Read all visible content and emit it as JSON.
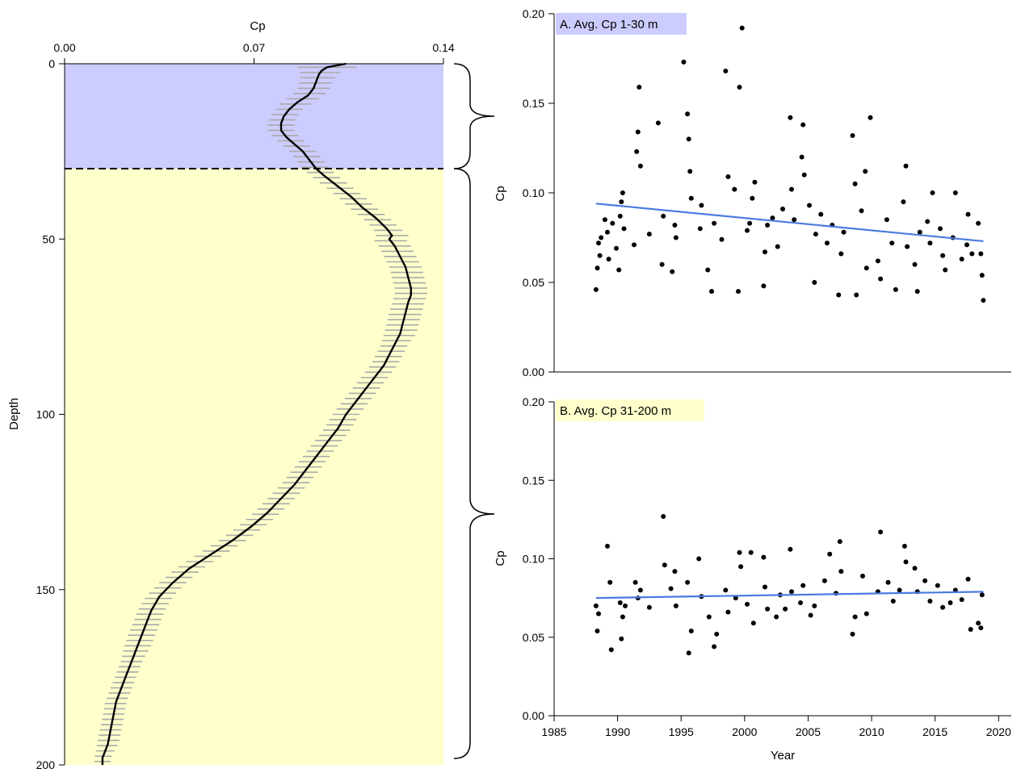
{
  "colors": {
    "surface_band": "#ccccff",
    "deep_band": "#ffffcc",
    "profile_line": "#000000",
    "error_bars": "#aaaaaa",
    "trend_line": "#4a7be0",
    "points": "#000000"
  },
  "chart_data": [
    {
      "type": "line",
      "xlabel": "Cp",
      "ylabel": "Depth",
      "xlim": [
        0.0,
        0.14
      ],
      "ylim": [
        200,
        0
      ],
      "x_ticks": [
        "0.00",
        "0.07",
        "0.14"
      ],
      "y_ticks": [
        "0",
        "50",
        "100",
        "150",
        "200"
      ],
      "x_axis_position": "top",
      "y_reversed": true,
      "shaded_layers": [
        {
          "depth_range": [
            0,
            30
          ],
          "color": "#ccccff"
        },
        {
          "depth_range": [
            30,
            200
          ],
          "color": "#ffffcc"
        }
      ],
      "boundary_depth": 30,
      "series": [
        {
          "depth": [
            0,
            1,
            2,
            3,
            5,
            7,
            9,
            11,
            13,
            15,
            17,
            19,
            21,
            23,
            25,
            27,
            29,
            30,
            32,
            35,
            38,
            41,
            44,
            47,
            49,
            50,
            52,
            55,
            58,
            61,
            64,
            66,
            68,
            71,
            74,
            77,
            80,
            83,
            86,
            89,
            92,
            96,
            100,
            104,
            108,
            112,
            116,
            120,
            124,
            128,
            132,
            136,
            140,
            144,
            148,
            152,
            156,
            158,
            162,
            166,
            170,
            174,
            178,
            182,
            186,
            190,
            194,
            198,
            200
          ],
          "cp": [
            0.104,
            0.097,
            0.095,
            0.094,
            0.093,
            0.092,
            0.09,
            0.086,
            0.083,
            0.081,
            0.08,
            0.08,
            0.082,
            0.085,
            0.088,
            0.09,
            0.092,
            0.093,
            0.096,
            0.101,
            0.106,
            0.11,
            0.115,
            0.119,
            0.121,
            0.12,
            0.122,
            0.124,
            0.126,
            0.127,
            0.128,
            0.128,
            0.127,
            0.126,
            0.125,
            0.124,
            0.122,
            0.12,
            0.118,
            0.115,
            0.112,
            0.108,
            0.104,
            0.101,
            0.097,
            0.093,
            0.089,
            0.085,
            0.08,
            0.075,
            0.069,
            0.062,
            0.054,
            0.046,
            0.04,
            0.035,
            0.032,
            0.031,
            0.029,
            0.027,
            0.025,
            0.023,
            0.021,
            0.019,
            0.018,
            0.017,
            0.016,
            0.014,
            0.014
          ],
          "err": [
            0.012,
            0.011,
            0.008,
            0.007,
            0.006,
            0.006,
            0.006,
            0.006,
            0.005,
            0.005,
            0.005,
            0.005,
            0.005,
            0.005,
            0.005,
            0.005,
            0.005,
            0.005,
            0.005,
            0.005,
            0.005,
            0.005,
            0.005,
            0.005,
            0.006,
            0.006,
            0.006,
            0.006,
            0.006,
            0.006,
            0.006,
            0.006,
            0.006,
            0.006,
            0.006,
            0.006,
            0.005,
            0.005,
            0.005,
            0.005,
            0.005,
            0.005,
            0.005,
            0.005,
            0.005,
            0.005,
            0.005,
            0.005,
            0.005,
            0.005,
            0.005,
            0.005,
            0.005,
            0.005,
            0.005,
            0.005,
            0.005,
            0.005,
            0.005,
            0.005,
            0.004,
            0.004,
            0.004,
            0.004,
            0.004,
            0.004,
            0.004,
            0.003,
            0.003
          ]
        }
      ]
    },
    {
      "type": "scatter",
      "title": "A. Avg. Cp 1-30 m",
      "xlabel": "",
      "ylabel": "Cp",
      "xlim": [
        1985,
        2021
      ],
      "ylim": [
        0.0,
        0.2
      ],
      "y_ticks": [
        "0.00",
        "0.05",
        "0.10",
        "0.15",
        "0.20"
      ],
      "x_tick_labels_shown": false,
      "trend": {
        "x": [
          1988.3,
          2018.8
        ],
        "y": [
          0.094,
          0.073
        ]
      },
      "x": [
        1988.3,
        1988.4,
        1988.5,
        1988.6,
        1988.7,
        1989.0,
        1989.2,
        1989.3,
        1989.6,
        1989.9,
        1990.1,
        1990.2,
        1990.3,
        1990.4,
        1990.5,
        1991.3,
        1991.5,
        1991.6,
        1991.7,
        1991.8,
        1992.5,
        1993.2,
        1993.5,
        1993.6,
        1994.3,
        1994.5,
        1994.6,
        1995.2,
        1995.5,
        1995.6,
        1995.7,
        1995.8,
        1996.5,
        1996.6,
        1997.1,
        1997.4,
        1997.6,
        1998.2,
        1998.5,
        1998.7,
        1999.2,
        1999.5,
        1999.6,
        1999.8,
        2000.2,
        2000.4,
        2000.6,
        2000.8,
        2001.5,
        2001.6,
        2001.8,
        2002.2,
        2002.6,
        2003.0,
        2003.6,
        2003.7,
        2003.9,
        2004.5,
        2004.6,
        2004.7,
        2005.1,
        2005.5,
        2005.6,
        2006.0,
        2006.5,
        2006.9,
        2007.4,
        2007.6,
        2007.8,
        2008.5,
        2008.7,
        2008.8,
        2009.2,
        2009.5,
        2009.6,
        2009.9,
        2010.5,
        2010.7,
        2011.2,
        2011.6,
        2011.9,
        2012.5,
        2012.7,
        2012.8,
        2013.4,
        2013.6,
        2013.8,
        2014.4,
        2014.6,
        2014.8,
        2015.4,
        2015.6,
        2015.8,
        2016.4,
        2016.6,
        2017.1,
        2017.5,
        2017.6,
        2017.9,
        2018.4,
        2018.6,
        2018.7,
        2018.8
      ],
      "y": [
        0.046,
        0.058,
        0.072,
        0.065,
        0.075,
        0.085,
        0.078,
        0.063,
        0.083,
        0.069,
        0.057,
        0.087,
        0.095,
        0.1,
        0.08,
        0.071,
        0.123,
        0.134,
        0.159,
        0.115,
        0.077,
        0.139,
        0.06,
        0.087,
        0.056,
        0.082,
        0.075,
        0.173,
        0.144,
        0.13,
        0.112,
        0.097,
        0.08,
        0.093,
        0.057,
        0.045,
        0.083,
        0.074,
        0.168,
        0.109,
        0.102,
        0.045,
        0.159,
        0.192,
        0.079,
        0.083,
        0.097,
        0.106,
        0.048,
        0.067,
        0.082,
        0.086,
        0.07,
        0.091,
        0.142,
        0.102,
        0.085,
        0.12,
        0.138,
        0.11,
        0.093,
        0.05,
        0.077,
        0.088,
        0.072,
        0.082,
        0.043,
        0.066,
        0.078,
        0.132,
        0.105,
        0.043,
        0.09,
        0.112,
        0.058,
        0.142,
        0.062,
        0.052,
        0.085,
        0.072,
        0.046,
        0.095,
        0.115,
        0.07,
        0.06,
        0.045,
        0.078,
        0.084,
        0.072,
        0.1,
        0.08,
        0.065,
        0.057,
        0.075,
        0.1,
        0.063,
        0.071,
        0.088,
        0.066,
        0.083,
        0.066,
        0.054,
        0.04
      ]
    },
    {
      "type": "scatter",
      "title": "B. Avg. Cp 31-200 m",
      "xlabel": "Year",
      "ylabel": "Cp",
      "xlim": [
        1985,
        2021
      ],
      "ylim": [
        0.0,
        0.2
      ],
      "x_ticks": [
        "1985",
        "1990",
        "1995",
        "2000",
        "2005",
        "2010",
        "2015",
        "2020"
      ],
      "y_ticks": [
        "0.00",
        "0.05",
        "0.10",
        "0.15",
        "0.20"
      ],
      "trend": {
        "x": [
          1988.3,
          2018.8
        ],
        "y": [
          0.075,
          0.079
        ]
      },
      "x": [
        1988.3,
        1988.4,
        1988.5,
        1989.2,
        1989.4,
        1989.5,
        1990.2,
        1990.3,
        1990.4,
        1990.6,
        1991.4,
        1991.6,
        1991.8,
        1992.5,
        1993.6,
        1993.7,
        1994.2,
        1994.5,
        1994.6,
        1995.5,
        1995.6,
        1995.8,
        1996.4,
        1996.6,
        1997.2,
        1997.6,
        1997.8,
        1998.5,
        1998.7,
        1999.3,
        1999.6,
        1999.7,
        2000.2,
        2000.5,
        2000.7,
        2001.5,
        2001.6,
        2001.8,
        2002.5,
        2002.8,
        2003.2,
        2003.6,
        2003.7,
        2004.4,
        2004.6,
        2005.2,
        2005.5,
        2006.3,
        2006.7,
        2007.2,
        2007.5,
        2007.6,
        2008.5,
        2008.7,
        2009.3,
        2009.6,
        2010.5,
        2010.7,
        2011.3,
        2011.7,
        2012.2,
        2012.6,
        2012.7,
        2013.4,
        2013.6,
        2014.2,
        2014.6,
        2015.2,
        2015.6,
        2016.2,
        2016.6,
        2017.1,
        2017.6,
        2017.8,
        2018.4,
        2018.6,
        2018.7
      ],
      "y": [
        0.07,
        0.054,
        0.065,
        0.108,
        0.085,
        0.042,
        0.072,
        0.049,
        0.063,
        0.07,
        0.085,
        0.075,
        0.08,
        0.069,
        0.127,
        0.096,
        0.081,
        0.092,
        0.07,
        0.085,
        0.04,
        0.054,
        0.1,
        0.076,
        0.063,
        0.044,
        0.052,
        0.08,
        0.066,
        0.075,
        0.104,
        0.095,
        0.071,
        0.104,
        0.059,
        0.101,
        0.082,
        0.068,
        0.063,
        0.077,
        0.068,
        0.106,
        0.079,
        0.072,
        0.083,
        0.064,
        0.07,
        0.086,
        0.103,
        0.078,
        0.111,
        0.092,
        0.052,
        0.063,
        0.089,
        0.065,
        0.079,
        0.117,
        0.085,
        0.073,
        0.08,
        0.108,
        0.098,
        0.094,
        0.079,
        0.086,
        0.073,
        0.083,
        0.069,
        0.072,
        0.08,
        0.074,
        0.087,
        0.055,
        0.059,
        0.056,
        0.077
      ]
    }
  ]
}
